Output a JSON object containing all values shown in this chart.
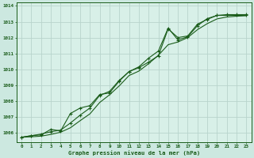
{
  "title": "Graphe pression niveau de la mer (hPa)",
  "bg_color": "#cce8e0",
  "plot_bg_color": "#d8f0e8",
  "grid_color": "#b8d4cc",
  "line_color": "#1a5c1a",
  "xlim": [
    -0.5,
    23.5
  ],
  "ylim": [
    1005.4,
    1014.2
  ],
  "yticks": [
    1006,
    1007,
    1008,
    1009,
    1010,
    1011,
    1012,
    1013,
    1014
  ],
  "xticks": [
    0,
    1,
    2,
    3,
    4,
    5,
    6,
    7,
    8,
    9,
    10,
    11,
    12,
    13,
    14,
    15,
    16,
    17,
    18,
    19,
    20,
    21,
    22,
    23
  ],
  "series1": [
    1005.7,
    1005.8,
    1005.9,
    1006.05,
    1006.15,
    1006.6,
    1007.1,
    1007.55,
    1008.35,
    1008.6,
    1009.3,
    1009.85,
    1010.15,
    1010.7,
    1011.15,
    1012.6,
    1011.85,
    1012.05,
    1012.75,
    1013.2,
    1013.4,
    1013.45,
    1013.45,
    1013.45
  ],
  "series2": [
    1005.7,
    1005.8,
    1005.85,
    1006.2,
    1006.1,
    1007.2,
    1007.55,
    1007.7,
    1008.4,
    1008.5,
    1009.25,
    1009.85,
    1010.1,
    1010.45,
    1010.85,
    1012.55,
    1012.0,
    1012.1,
    1012.85,
    1013.15,
    1013.4,
    1013.4,
    1013.4,
    1013.4
  ],
  "series3": [
    1005.7,
    1005.73,
    1005.77,
    1005.88,
    1006.02,
    1006.3,
    1006.75,
    1007.18,
    1007.9,
    1008.38,
    1008.95,
    1009.6,
    1009.88,
    1010.35,
    1010.88,
    1011.55,
    1011.72,
    1012.0,
    1012.5,
    1012.88,
    1013.18,
    1013.3,
    1013.35,
    1013.38
  ]
}
